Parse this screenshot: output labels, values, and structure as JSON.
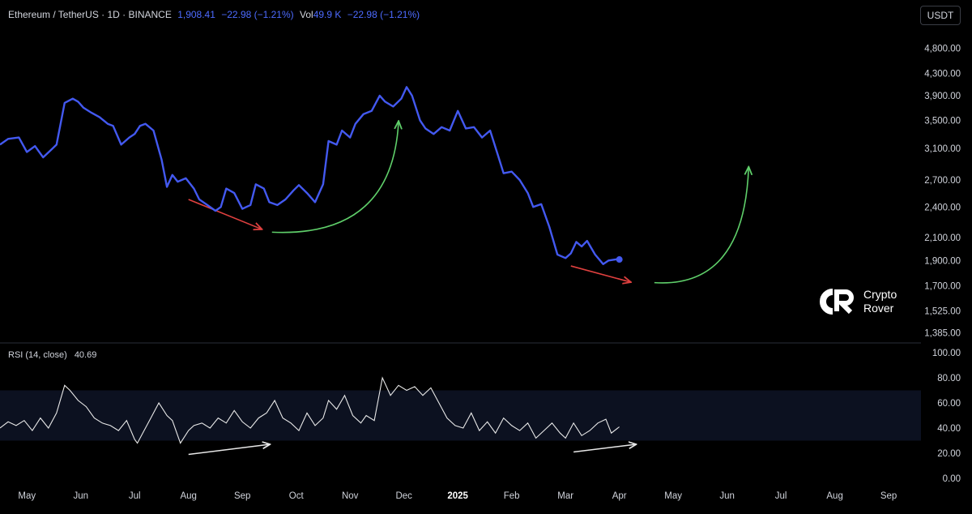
{
  "header": {
    "symbol": "Ethereum / TetherUS · 1D · BINANCE",
    "price": "1,908.41",
    "change": "−22.98 (−1.21%)",
    "vol_label": "Vol",
    "vol_value": "49.9 K",
    "vol_change": "−22.98 (−1.21%)"
  },
  "currency_button": "USDT",
  "logo": {
    "line1": "Crypto",
    "line2": "Rover"
  },
  "colors": {
    "price_line": "#4359f0",
    "bearish_arrow": "#e0403f",
    "bullish_arrow": "#5fcf6a",
    "rsi_line": "#e8e8e8",
    "rsi_band": "#0c1120"
  },
  "chart_data": [
    {
      "type": "line",
      "title": "Ethereum / TetherUS · 1D · BINANCE",
      "scale": "log",
      "ylim": [
        1340,
        5050
      ],
      "yticks": [
        1385,
        1525,
        1700,
        1900,
        2100,
        2400,
        2700,
        3100,
        3500,
        3900,
        4300,
        4800
      ],
      "ytick_labels": [
        "1,385.00",
        "1,525.00",
        "1,700.00",
        "1,900.00",
        "2,100.00",
        "2,400.00",
        "2,700.00",
        "3,100.00",
        "3,500.00",
        "3,900.00",
        "4,300.00",
        "4,800.00"
      ],
      "x_labels": [
        "May",
        "Jun",
        "Jul",
        "Aug",
        "Sep",
        "Oct",
        "Nov",
        "Dec",
        "2025",
        "Feb",
        "Mar",
        "Apr",
        "May",
        "Jun",
        "Jul",
        "Aug",
        "Sep"
      ],
      "x_label_months": [
        0,
        1,
        2,
        3,
        4,
        5,
        6,
        7,
        8,
        9,
        10,
        11,
        12,
        13,
        14,
        15,
        16
      ],
      "x_domain_months": [
        -0.5,
        16.6
      ],
      "series": [
        {
          "name": "ETHUSDT",
          "x_months": [
            -0.5,
            -0.35,
            -0.15,
            0.0,
            0.15,
            0.3,
            0.45,
            0.55,
            0.7,
            0.85,
            0.95,
            1.05,
            1.2,
            1.35,
            1.5,
            1.6,
            1.75,
            1.9,
            2.0,
            2.1,
            2.2,
            2.35,
            2.5,
            2.6,
            2.7,
            2.8,
            2.95,
            3.1,
            3.2,
            3.35,
            3.5,
            3.6,
            3.7,
            3.85,
            4.0,
            4.15,
            4.25,
            4.4,
            4.5,
            4.65,
            4.8,
            4.95,
            5.05,
            5.2,
            5.35,
            5.5,
            5.6,
            5.75,
            5.85,
            6.0,
            6.1,
            6.25,
            6.4,
            6.55,
            6.65,
            6.8,
            6.95,
            7.05,
            7.15,
            7.3,
            7.4,
            7.55,
            7.7,
            7.85,
            8.0,
            8.15,
            8.3,
            8.45,
            8.6,
            8.75,
            8.85,
            9.0,
            9.15,
            9.3,
            9.4,
            9.55,
            9.7,
            9.85,
            10.0,
            10.1,
            10.2,
            10.3,
            10.4,
            10.55,
            10.7,
            10.8,
            10.95,
            11.0
          ],
          "values": [
            3150,
            3230,
            3250,
            3050,
            3130,
            2980,
            3080,
            3150,
            3780,
            3850,
            3800,
            3700,
            3620,
            3550,
            3450,
            3420,
            3150,
            3250,
            3300,
            3420,
            3450,
            3350,
            2950,
            2620,
            2760,
            2680,
            2720,
            2600,
            2480,
            2420,
            2360,
            2400,
            2600,
            2550,
            2380,
            2420,
            2650,
            2600,
            2450,
            2420,
            2480,
            2580,
            2640,
            2550,
            2450,
            2650,
            3200,
            3150,
            3350,
            3250,
            3450,
            3600,
            3650,
            3900,
            3800,
            3720,
            3850,
            4050,
            3900,
            3500,
            3380,
            3300,
            3400,
            3350,
            3650,
            3380,
            3400,
            3250,
            3350,
            3000,
            2780,
            2800,
            2700,
            2550,
            2400,
            2430,
            2200,
            1950,
            1920,
            1960,
            2060,
            2020,
            2070,
            1950,
            1870,
            1900,
            1910,
            1908
          ]
        }
      ],
      "last_value": 1908.41,
      "annotations": [
        {
          "type": "bearish-arrow",
          "from": [
            3.0,
            2480
          ],
          "to": [
            4.35,
            2180
          ]
        },
        {
          "type": "bullish-curve",
          "from": [
            4.55,
            2150
          ],
          "to": [
            6.9,
            3480
          ]
        },
        {
          "type": "bearish-arrow",
          "from": [
            10.1,
            1855
          ],
          "to": [
            11.2,
            1730
          ]
        },
        {
          "type": "bullish-curve",
          "from": [
            11.65,
            1725
          ],
          "to": [
            13.4,
            2850
          ]
        }
      ]
    },
    {
      "type": "line",
      "title": "RSI (14, close)",
      "current_value": "40.69",
      "ylim": [
        0,
        100
      ],
      "yticks": [
        0,
        20,
        40,
        60,
        80,
        100
      ],
      "ytick_labels": [
        "0.00",
        "20.00",
        "40.00",
        "60.00",
        "80.00",
        "100.00"
      ],
      "band": [
        30,
        70
      ],
      "series": [
        {
          "name": "RSI",
          "x_months": [
            -0.5,
            -0.35,
            -0.2,
            -0.05,
            0.1,
            0.25,
            0.4,
            0.55,
            0.7,
            0.8,
            0.95,
            1.1,
            1.25,
            1.4,
            1.55,
            1.7,
            1.85,
            2.0,
            2.05,
            2.15,
            2.3,
            2.45,
            2.6,
            2.7,
            2.85,
            3.0,
            3.1,
            3.25,
            3.4,
            3.55,
            3.7,
            3.85,
            4.0,
            4.15,
            4.3,
            4.45,
            4.6,
            4.75,
            4.9,
            5.05,
            5.2,
            5.35,
            5.5,
            5.6,
            5.75,
            5.9,
            6.05,
            6.2,
            6.3,
            6.45,
            6.6,
            6.75,
            6.9,
            7.05,
            7.2,
            7.35,
            7.5,
            7.65,
            7.8,
            7.95,
            8.1,
            8.25,
            8.4,
            8.55,
            8.7,
            8.85,
            9.0,
            9.15,
            9.3,
            9.45,
            9.6,
            9.75,
            9.9,
            10.0,
            10.15,
            10.3,
            10.45,
            10.6,
            10.75,
            10.85,
            11.0
          ],
          "values": [
            40,
            45,
            42,
            46,
            38,
            48,
            40,
            52,
            74,
            70,
            62,
            57,
            48,
            44,
            42,
            38,
            46,
            31,
            28,
            36,
            48,
            60,
            50,
            46,
            28,
            38,
            42,
            44,
            40,
            48,
            44,
            54,
            45,
            40,
            48,
            52,
            62,
            48,
            44,
            38,
            52,
            42,
            48,
            62,
            55,
            66,
            50,
            44,
            50,
            46,
            80,
            66,
            74,
            70,
            73,
            66,
            72,
            60,
            48,
            42,
            40,
            52,
            38,
            45,
            36,
            48,
            42,
            38,
            44,
            32,
            38,
            44,
            36,
            32,
            44,
            34,
            38,
            44,
            47,
            36,
            41
          ]
        }
      ],
      "annotations": [
        {
          "type": "bullish-divergence-line",
          "from": [
            3.0,
            19
          ],
          "to": [
            4.5,
            27
          ]
        },
        {
          "type": "bullish-divergence-line",
          "from": [
            10.15,
            21
          ],
          "to": [
            11.3,
            27
          ]
        }
      ]
    }
  ]
}
